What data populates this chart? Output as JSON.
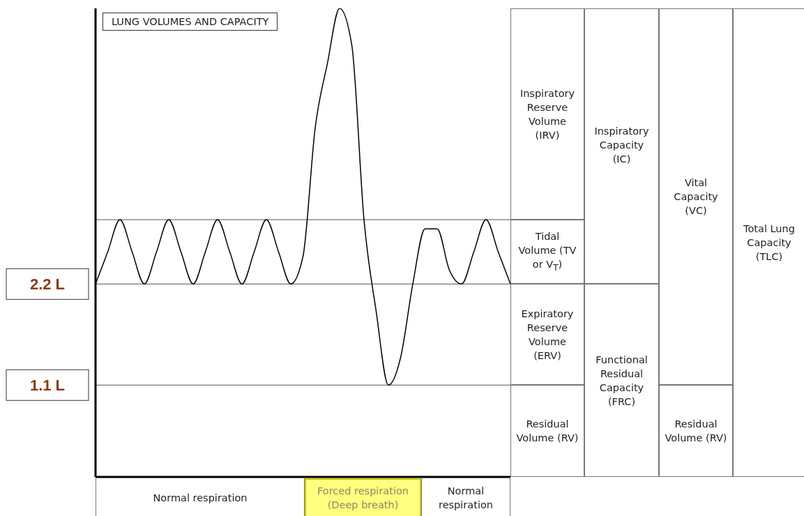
{
  "chart_data": {
    "type": "line",
    "title": "LUNG VOLUMES AND CAPACITY",
    "categories": [
      null,
      null,
      null,
      null,
      null,
      null,
      null,
      null,
      null,
      null,
      null,
      null,
      null,
      null,
      null,
      null,
      null,
      null,
      null,
      null,
      null,
      null,
      null,
      null,
      null,
      null,
      null,
      null,
      null,
      null,
      null,
      null,
      null,
      null,
      null
    ],
    "series": [
      {
        "color": "#000000",
        "values": [
          2.2,
          2.55,
          2.9,
          2.55,
          2.2,
          2.55,
          2.9,
          2.55,
          2.2,
          2.55,
          2.9,
          2.55,
          2.2,
          2.55,
          2.9,
          2.55,
          2.2,
          2.5,
          3.9,
          4.6,
          5.2,
          4.8,
          2.9,
          1.9,
          1.1,
          1.4,
          2.2,
          2.8,
          2.8,
          2.35,
          2.2,
          2.55,
          2.9,
          2.55,
          2.2
        ]
      }
    ],
    "ylim": [
      0.1,
      5.2
    ],
    "yticks": [
      {
        "value": 1.1,
        "label": "1.1 L"
      },
      {
        "value": 2.2,
        "label": "2.2 L"
      },
      {
        "value": 2.9,
        "label": null
      }
    ],
    "grid": "y",
    "marker": "none",
    "line_style": "solid",
    "tick_labels": "y",
    "annotations": [
      "Normal respiration",
      "Forced respiration (Deep breath)",
      "Normal respiration",
      "Inspiratory Reserve Volume (IRV)",
      "Tidal Volume (TV or V$_{T}$)",
      "Expiratory Reserve Volume (ERV)",
      "Residual Volume (RV)",
      "Inspiratory Capacity (IC)",
      "Functional Residual Capacity (FRC)",
      "Vital Capacity (VC)",
      "Residual Volume (RV)",
      "Total Lung Capacity (TLC)"
    ]
  }
}
